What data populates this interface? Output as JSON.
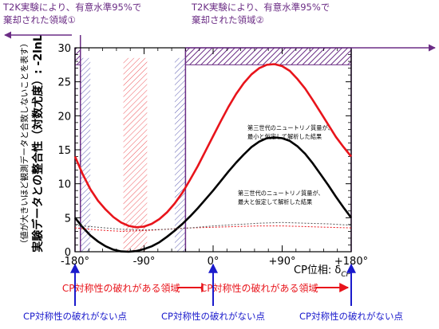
{
  "chart_data": {
    "type": "line",
    "xlabel": "CP位相: δ",
    "xlabel_sub": "CP",
    "ylabel_main": "実験データとの整合性（対数尤度）: -2lnL",
    "ylabel_sub": "（値が大きいほど観測データと合致しないことを表す）",
    "xlim": [
      -180,
      180
    ],
    "ylim": [
      0,
      30
    ],
    "x_ticks": [
      -180,
      -90,
      0,
      90,
      180
    ],
    "x_tick_labels": [
      "-180°",
      "-90°",
      "0°",
      "+90°",
      "+180°"
    ],
    "y_ticks": [
      0,
      5,
      10,
      15,
      20,
      25,
      30
    ],
    "y_tick_labels": [
      "0",
      "5",
      "10",
      "15",
      "20",
      "25",
      "30"
    ],
    "series": [
      {
        "name": "第三世代のニュートリノ質量が、最小と仮定して解析した結果",
        "color": "#e8141b",
        "x": [
          -180,
          -170,
          -160,
          -150,
          -140,
          -130,
          -120,
          -110,
          -100,
          -90,
          -80,
          -70,
          -60,
          -50,
          -40,
          -30,
          -20,
          -10,
          0,
          10,
          20,
          30,
          40,
          50,
          60,
          70,
          80,
          90,
          100,
          110,
          120,
          130,
          140,
          150,
          160,
          170,
          180
        ],
        "y": [
          14.0,
          11.4,
          9.2,
          7.5,
          6.2,
          5.1,
          4.3,
          3.8,
          3.6,
          3.7,
          4.1,
          4.8,
          5.8,
          7.1,
          8.7,
          10.6,
          12.6,
          14.8,
          17.0,
          19.2,
          21.3,
          23.2,
          24.8,
          26.1,
          27.0,
          27.5,
          27.6,
          27.3,
          26.6,
          25.4,
          24.0,
          22.3,
          20.5,
          18.7,
          16.9,
          15.4,
          14.0
        ]
      },
      {
        "name": "第三世代のニュートリノ質量が、最大と仮定して解析した結果",
        "color": "#000000",
        "x": [
          -180,
          -170,
          -160,
          -150,
          -140,
          -130,
          -120,
          -110,
          -100,
          -90,
          -80,
          -70,
          -60,
          -50,
          -40,
          -30,
          -20,
          -10,
          0,
          10,
          20,
          30,
          40,
          50,
          60,
          70,
          80,
          90,
          100,
          110,
          120,
          130,
          140,
          150,
          160,
          170,
          180
        ],
        "y": [
          5.0,
          3.6,
          2.4,
          1.5,
          0.8,
          0.3,
          0.05,
          0.0,
          0.1,
          0.4,
          0.8,
          1.4,
          2.2,
          3.1,
          4.1,
          5.2,
          6.4,
          7.7,
          9.0,
          10.4,
          11.8,
          13.1,
          14.3,
          15.4,
          16.2,
          16.7,
          16.8,
          16.7,
          16.3,
          15.5,
          14.4,
          13.0,
          11.4,
          9.8,
          8.1,
          6.5,
          5.0
        ]
      },
      {
        "name": "",
        "color": "#e8141b",
        "style": "dotted",
        "x": [
          -180,
          -150,
          -120,
          -90,
          -60,
          -30,
          0,
          30,
          60,
          90,
          120,
          150,
          180
        ],
        "y": [
          3.5,
          3.2,
          3.0,
          3.1,
          3.3,
          3.5,
          3.6,
          3.7,
          3.8,
          3.8,
          3.7,
          3.6,
          3.5
        ]
      },
      {
        "name": "",
        "color": "#555555",
        "style": "dotted",
        "x": [
          -180,
          -150,
          -120,
          -90,
          -60,
          -30,
          0,
          30,
          60,
          90,
          120,
          150,
          180
        ],
        "y": [
          3.9,
          3.6,
          3.3,
          3.2,
          3.3,
          3.5,
          3.8,
          4.0,
          4.2,
          4.3,
          4.2,
          4.1,
          3.9
        ]
      }
    ],
    "excluded_regions": [
      {
        "label": "T2K実験により、有意水準95%で棄却された領域①",
        "x_range": [
          -180,
          -173
        ]
      },
      {
        "label": "T2K実験により、有意水準95%で棄却された領域②",
        "x_range": [
          -36,
          180
        ]
      }
    ],
    "hatched_bands": [
      {
        "color": "#4a4aa8",
        "x_range": [
          -173,
          -160
        ],
        "y_range": [
          0,
          28.5
        ]
      },
      {
        "color": "#e8141b",
        "x_range": [
          -117,
          -86
        ],
        "y_range": [
          0,
          28.5
        ]
      },
      {
        "color": "#4a4aa8",
        "x_range": [
          -50,
          -36
        ],
        "y_range": [
          0,
          28.5
        ]
      }
    ],
    "annotations": {
      "region1": "T2K実験により、有意水準95%で\n棄却された領域①",
      "region2": "T2K実験により、有意水準95%で\n棄却された領域②",
      "red_curve": "第三世代のニュートリノ質量が、\n最小と仮定して解析した結果",
      "black_curve": "第三世代のニュートリノ質量が、\n最大と仮定して解析した結果",
      "cp_violation_left": "CP対称性の破れがある領域",
      "cp_violation_right": "CP対称性の破れがある領域",
      "cp_conserved_left": "CP対称性の破れがない点",
      "cp_conserved_mid": "CP対称性の破れがない点",
      "cp_conserved_right": "CP対称性の破れがない点"
    },
    "colors": {
      "purple": "#6b2d85",
      "red": "#e8141b",
      "blue": "#1a1acc",
      "band_blue": "#4a4aa8"
    }
  }
}
